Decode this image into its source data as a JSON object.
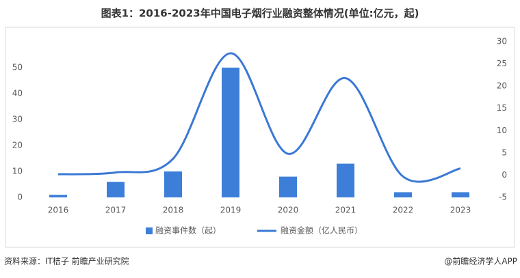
{
  "chart_data": {
    "type": "bar-line",
    "title": "图表1：2016-2023年中国电子烟行业融资整体情况(单位:亿元，起)",
    "categories": [
      "2016",
      "2017",
      "2018",
      "2019",
      "2020",
      "2021",
      "2022",
      "2023"
    ],
    "series": [
      {
        "name": "融资事件数（起）",
        "color": "#3d7fd8",
        "type": "bar",
        "values": [
          1,
          6,
          10,
          50,
          8,
          13,
          2,
          2
        ]
      },
      {
        "name": "融资金额（亿人民币）",
        "color": "#3a78d4",
        "type": "line",
        "axis": "y2",
        "values": [
          0.2,
          0.6,
          3.7,
          27.4,
          4.8,
          21.8,
          -0.3,
          1.5
        ]
      }
    ],
    "ylim": [
      0,
      60
    ],
    "yticks": [
      0,
      10,
      20,
      30,
      40,
      50
    ],
    "y2lim": [
      -5,
      30
    ],
    "y2ticks": [
      -5,
      0,
      5,
      10,
      15,
      20,
      25,
      30
    ],
    "source": "资料来源：IT桔子 前瞻产业研究院",
    "credit": "@前瞻经济学人APP"
  }
}
